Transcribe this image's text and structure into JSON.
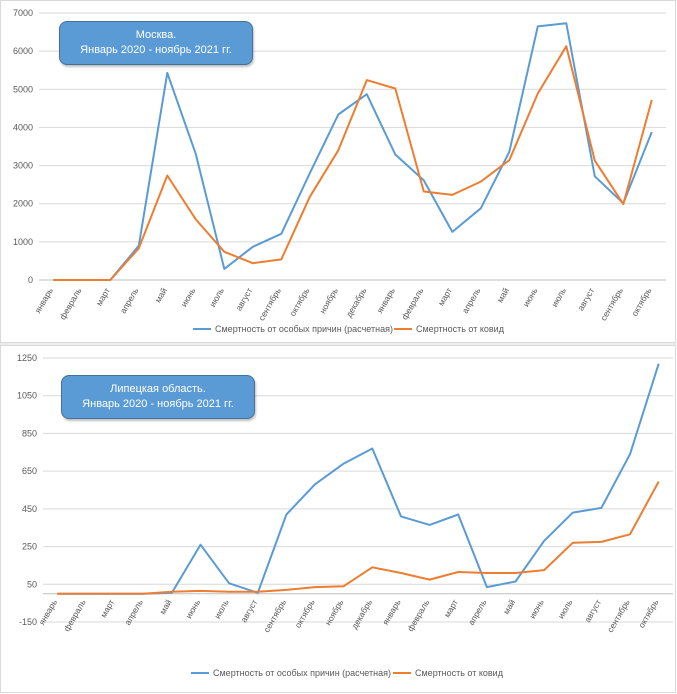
{
  "colors": {
    "series1": "#5b9bd5",
    "series2": "#ed7d31",
    "grid": "#d9d9d9",
    "axis_text": "#595959"
  },
  "chart_data": [
    {
      "type": "line",
      "title": "Москва. Январь 2020 - ноябрь 2021 гг.",
      "title_lines": [
        "Москва.",
        "Январь 2020 - ноябрь 2021 гг."
      ],
      "categories": [
        "январь",
        "февраль",
        "март",
        "апрель",
        "май",
        "июнь",
        "июль",
        "август",
        "сентябрь",
        "октябрь",
        "ноябрь",
        "декабрь",
        "январь",
        "февраль",
        "март",
        "апрель",
        "май",
        "июнь",
        "июль",
        "август",
        "сентябрь",
        "октябрь"
      ],
      "yticks": [
        0,
        1000,
        2000,
        3000,
        4000,
        5000,
        6000,
        7000
      ],
      "ylim": [
        0,
        7000
      ],
      "grid": true,
      "legend_position": "bottom",
      "series": [
        {
          "name": "Смертность от особых причин (расчетная)",
          "color": "#5b9bd5",
          "values": [
            0,
            0,
            0,
            900,
            5430,
            3300,
            290,
            870,
            1210,
            2800,
            4340,
            4870,
            3290,
            2610,
            1260,
            1880,
            3360,
            6650,
            6730,
            2720,
            2010,
            3880
          ]
        },
        {
          "name": "Смертность от ковид",
          "color": "#ed7d31",
          "values": [
            0,
            0,
            0,
            830,
            2740,
            1590,
            740,
            440,
            540,
            2180,
            3400,
            5240,
            5020,
            2320,
            2230,
            2580,
            3140,
            4890,
            6130,
            3130,
            1990,
            4720
          ]
        }
      ]
    },
    {
      "type": "line",
      "title": "Липецкая область. Январь 2020 - ноябрь 2021 гг.",
      "title_lines": [
        "Липецкая область.",
        "Январь 2020 - ноябрь 2021 гг."
      ],
      "categories": [
        "январь",
        "февраль",
        "март",
        "апрель",
        "май",
        "июнь",
        "июль",
        "август",
        "сентябрь",
        "октябрь",
        "ноябрь",
        "декабрь",
        "январь",
        "февраль",
        "март",
        "апрель",
        "май",
        "июнь",
        "июль",
        "август",
        "сентябрь",
        "октябрь"
      ],
      "yticks": [
        -150,
        50,
        250,
        450,
        650,
        850,
        1050,
        1250
      ],
      "ylim": [
        -150,
        1250
      ],
      "grid": true,
      "legend_position": "bottom",
      "series": [
        {
          "name": "Смертность от особых причин (расчетная)",
          "color": "#5b9bd5",
          "values": [
            0,
            0,
            0,
            0,
            5,
            260,
            55,
            5,
            420,
            580,
            690,
            770,
            410,
            365,
            420,
            35,
            65,
            280,
            430,
            455,
            740,
            1220
          ]
        },
        {
          "name": "Смертность от ковид",
          "color": "#ed7d31",
          "values": [
            0,
            0,
            0,
            0,
            10,
            15,
            10,
            10,
            20,
            35,
            40,
            140,
            110,
            75,
            115,
            110,
            110,
            125,
            270,
            275,
            315,
            595
          ]
        }
      ]
    }
  ]
}
